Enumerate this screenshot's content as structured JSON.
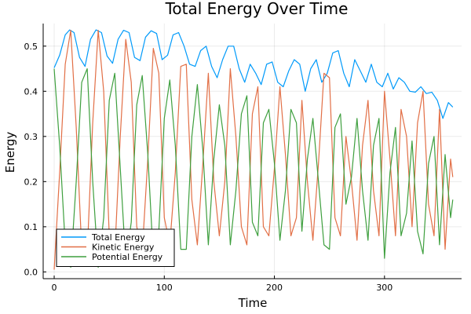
{
  "chart_data": {
    "type": "line",
    "title": "Total Energy Over Time",
    "xlabel": "Time",
    "ylabel": "Energy",
    "xlim": [
      -10,
      370
    ],
    "ylim": [
      -0.015,
      0.55
    ],
    "xticks": [
      0,
      100,
      200,
      300
    ],
    "yticks": [
      0.0,
      0.1,
      0.2,
      0.3,
      0.4,
      0.5
    ],
    "xtick_labels": [
      "0",
      "100",
      "200",
      "300"
    ],
    "ytick_labels": [
      "0.0",
      "0.1",
      "0.2",
      "0.3",
      "0.4",
      "0.5"
    ],
    "grid": true,
    "legend_position": "bottom-left",
    "series": [
      {
        "name": "Total Energy",
        "color": "#009AFA",
        "x": [
          0,
          5,
          10,
          14,
          18,
          23,
          28,
          33,
          38,
          43,
          48,
          53,
          58,
          63,
          68,
          73,
          78,
          83,
          88,
          93,
          98,
          103,
          108,
          113,
          118,
          123,
          128,
          133,
          138,
          143,
          148,
          153,
          158,
          163,
          168,
          173,
          178,
          183,
          188,
          193,
          198,
          203,
          208,
          213,
          218,
          223,
          228,
          233,
          238,
          243,
          248,
          253,
          258,
          263,
          268,
          273,
          278,
          283,
          288,
          293,
          298,
          303,
          308,
          313,
          318,
          323,
          328,
          333,
          338,
          343,
          348,
          353,
          358,
          362
        ],
        "y": [
          0.452,
          0.48,
          0.525,
          0.536,
          0.53,
          0.475,
          0.455,
          0.515,
          0.536,
          0.53,
          0.478,
          0.462,
          0.515,
          0.535,
          0.53,
          0.475,
          0.468,
          0.52,
          0.534,
          0.528,
          0.47,
          0.48,
          0.525,
          0.53,
          0.5,
          0.46,
          0.455,
          0.49,
          0.5,
          0.455,
          0.43,
          0.47,
          0.5,
          0.5,
          0.45,
          0.42,
          0.46,
          0.44,
          0.415,
          0.46,
          0.465,
          0.42,
          0.41,
          0.445,
          0.47,
          0.46,
          0.4,
          0.45,
          0.47,
          0.42,
          0.44,
          0.485,
          0.49,
          0.44,
          0.41,
          0.47,
          0.445,
          0.42,
          0.46,
          0.42,
          0.41,
          0.44,
          0.405,
          0.43,
          0.42,
          0.4,
          0.398,
          0.41,
          0.395,
          0.398,
          0.38,
          0.34,
          0.375,
          0.365
        ]
      },
      {
        "name": "Kinetic Energy",
        "color": "#E26F46",
        "x": [
          0,
          5,
          10,
          15,
          20,
          25,
          30,
          35,
          40,
          45,
          50,
          55,
          60,
          65,
          70,
          75,
          80,
          85,
          90,
          95,
          100,
          105,
          110,
          115,
          120,
          125,
          130,
          135,
          140,
          145,
          150,
          155,
          160,
          165,
          170,
          175,
          180,
          185,
          190,
          195,
          200,
          205,
          210,
          215,
          220,
          225,
          230,
          235,
          240,
          245,
          250,
          255,
          260,
          265,
          270,
          275,
          280,
          285,
          290,
          295,
          300,
          305,
          310,
          315,
          320,
          325,
          330,
          335,
          340,
          345,
          350,
          355,
          360,
          362
        ],
        "y": [
          0.005,
          0.22,
          0.46,
          0.535,
          0.32,
          0.05,
          0.04,
          0.33,
          0.535,
          0.4,
          0.08,
          0.04,
          0.3,
          0.515,
          0.42,
          0.1,
          0.045,
          0.25,
          0.495,
          0.44,
          0.12,
          0.06,
          0.22,
          0.455,
          0.46,
          0.16,
          0.06,
          0.24,
          0.44,
          0.2,
          0.08,
          0.2,
          0.45,
          0.3,
          0.1,
          0.06,
          0.35,
          0.41,
          0.1,
          0.08,
          0.23,
          0.41,
          0.26,
          0.08,
          0.12,
          0.38,
          0.2,
          0.07,
          0.24,
          0.44,
          0.43,
          0.12,
          0.08,
          0.3,
          0.2,
          0.07,
          0.28,
          0.38,
          0.18,
          0.08,
          0.4,
          0.25,
          0.08,
          0.36,
          0.3,
          0.1,
          0.33,
          0.4,
          0.15,
          0.08,
          0.36,
          0.05,
          0.25,
          0.21
        ]
      },
      {
        "name": "Potential Energy",
        "color": "#3E9F3E",
        "x": [
          0,
          5,
          10,
          15,
          20,
          25,
          30,
          35,
          40,
          45,
          50,
          55,
          60,
          65,
          70,
          75,
          80,
          85,
          90,
          95,
          100,
          105,
          110,
          115,
          120,
          125,
          130,
          135,
          140,
          145,
          150,
          155,
          160,
          165,
          170,
          175,
          180,
          185,
          190,
          195,
          200,
          205,
          210,
          215,
          220,
          225,
          230,
          235,
          240,
          245,
          250,
          255,
          260,
          265,
          270,
          275,
          280,
          285,
          290,
          295,
          300,
          305,
          310,
          315,
          320,
          325,
          330,
          335,
          340,
          345,
          350,
          355,
          360,
          362
        ],
        "y": [
          0.45,
          0.28,
          0.06,
          0.01,
          0.2,
          0.42,
          0.45,
          0.2,
          0.01,
          0.12,
          0.38,
          0.44,
          0.23,
          0.02,
          0.11,
          0.37,
          0.435,
          0.26,
          0.03,
          0.09,
          0.34,
          0.425,
          0.28,
          0.05,
          0.05,
          0.3,
          0.415,
          0.27,
          0.06,
          0.25,
          0.37,
          0.28,
          0.06,
          0.18,
          0.35,
          0.39,
          0.11,
          0.08,
          0.33,
          0.36,
          0.24,
          0.07,
          0.18,
          0.36,
          0.33,
          0.09,
          0.25,
          0.34,
          0.2,
          0.06,
          0.05,
          0.32,
          0.35,
          0.15,
          0.21,
          0.34,
          0.18,
          0.07,
          0.28,
          0.34,
          0.03,
          0.22,
          0.32,
          0.08,
          0.13,
          0.29,
          0.09,
          0.04,
          0.24,
          0.3,
          0.06,
          0.26,
          0.12,
          0.16
        ]
      }
    ]
  }
}
